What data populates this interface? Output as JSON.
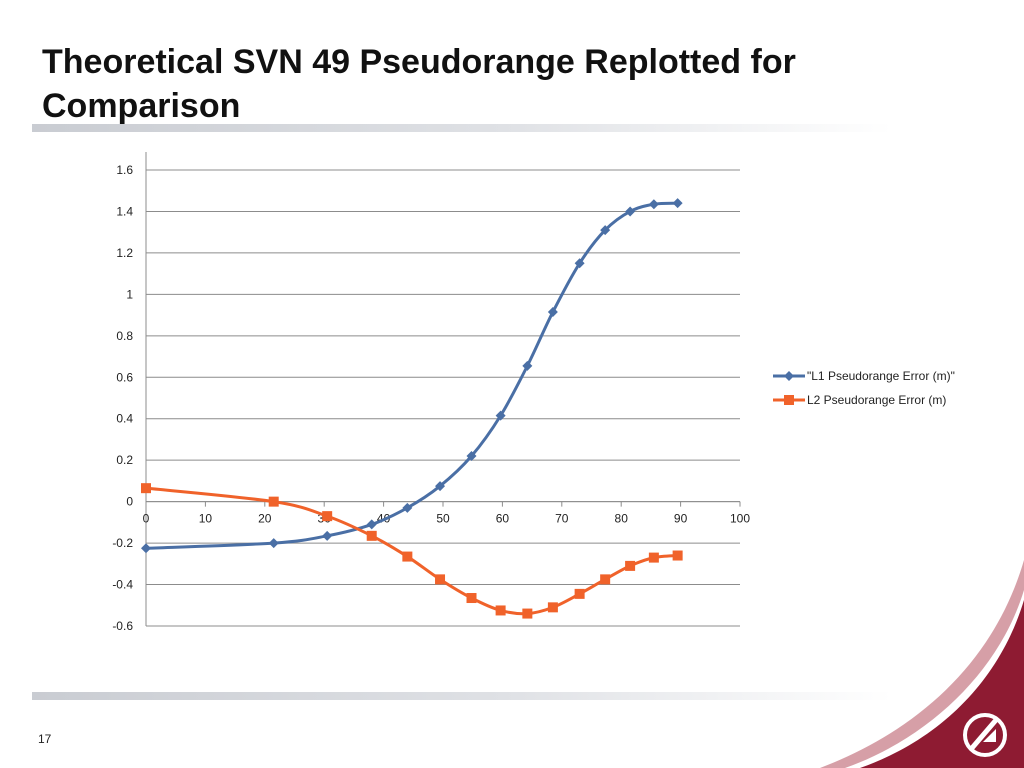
{
  "slide": {
    "title": "Theoretical SVN 49 Pseudorange Replotted for Comparison",
    "page_number": "17"
  },
  "colors": {
    "series_l1": "#4a6fa5",
    "series_l2": "#f0622a",
    "brand_maroon": "#8e1b32"
  },
  "icons": {
    "logo": "circle-slash-logo"
  },
  "chart_data": {
    "type": "scatter",
    "title": "",
    "xlabel": "",
    "ylabel": "",
    "xlim": [
      0,
      100
    ],
    "ylim": [
      -0.6,
      1.6
    ],
    "x_ticks": [
      0,
      10,
      20,
      30,
      40,
      50,
      60,
      70,
      80,
      90,
      100
    ],
    "y_ticks": [
      -0.6,
      -0.4,
      -0.2,
      0,
      0.2,
      0.4,
      0.6,
      0.8,
      1,
      1.2,
      1.4,
      1.6
    ],
    "grid": "horizontal",
    "legend_position": "right",
    "series": [
      {
        "name": "\"L1 Pseudorange Error (m)\"",
        "marker": "diamond",
        "x": [
          0,
          21.5,
          30.5,
          38,
          44,
          49.5,
          54.8,
          59.7,
          64.2,
          68.5,
          73,
          77.3,
          81.5,
          85.5,
          89.5
        ],
        "y": [
          -0.225,
          -0.2,
          -0.165,
          -0.11,
          -0.03,
          0.075,
          0.22,
          0.415,
          0.655,
          0.915,
          1.15,
          1.31,
          1.4,
          1.435,
          1.44
        ]
      },
      {
        "name": "L2 Pseudorange Error (m)",
        "marker": "square",
        "x": [
          0,
          21.5,
          30.5,
          38,
          44,
          49.5,
          54.8,
          59.7,
          64.2,
          68.5,
          73,
          77.3,
          81.5,
          85.5,
          89.5
        ],
        "y": [
          0.065,
          0.0,
          -0.07,
          -0.165,
          -0.265,
          -0.375,
          -0.465,
          -0.525,
          -0.54,
          -0.51,
          -0.445,
          -0.375,
          -0.31,
          -0.27,
          -0.26
        ]
      }
    ]
  }
}
